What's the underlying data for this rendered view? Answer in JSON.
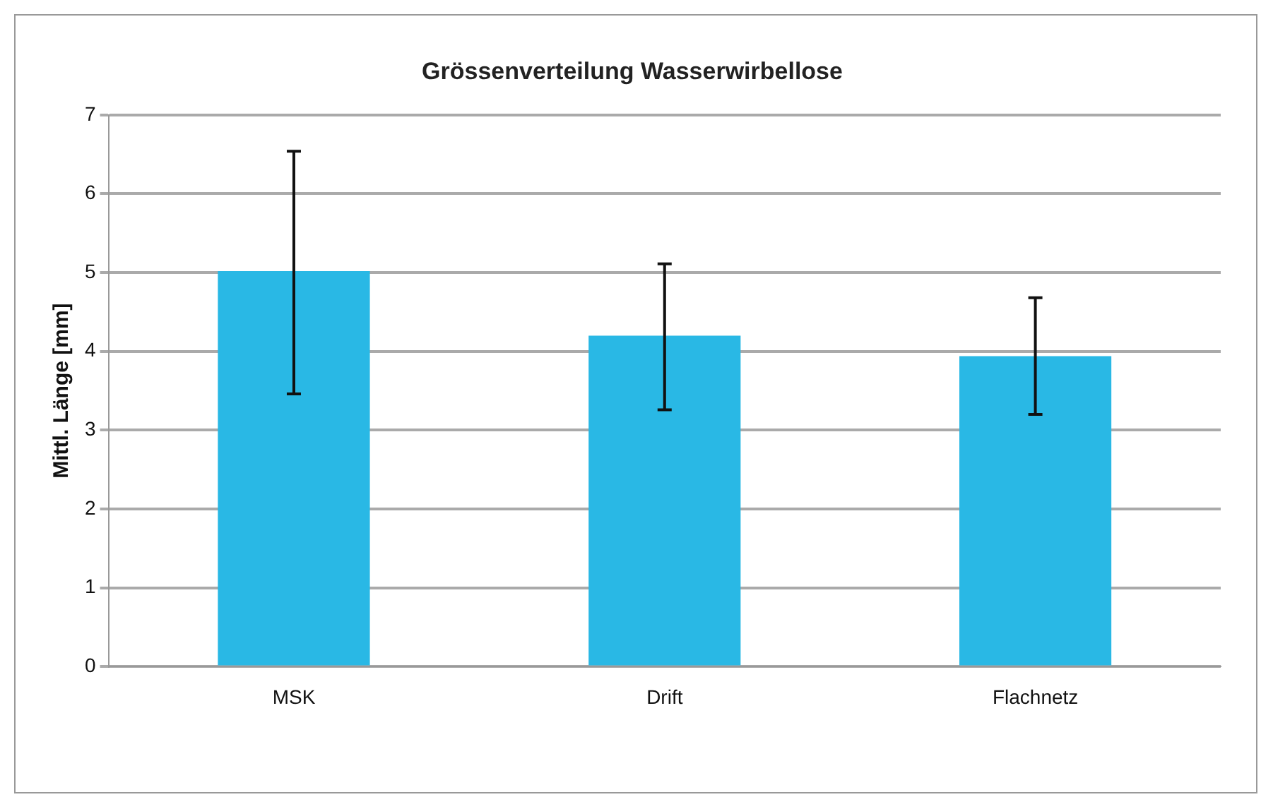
{
  "chart_data": {
    "type": "bar",
    "title": "Grössenverteilung Wasserwirbellose",
    "ylabel": "Mittl. Länge [mm]",
    "categories": [
      "MSK",
      "Drift",
      "Flachnetz"
    ],
    "values": [
      5.02,
      4.2,
      3.94
    ],
    "errors": [
      [
        3.46,
        6.54
      ],
      [
        3.26,
        5.11
      ],
      [
        3.2,
        4.68
      ]
    ],
    "color": "#29b8e5",
    "ylim": [
      0,
      7
    ],
    "yticks": [
      0,
      1,
      2,
      3,
      4,
      5,
      6,
      7
    ],
    "grid": "y",
    "legend": false
  }
}
